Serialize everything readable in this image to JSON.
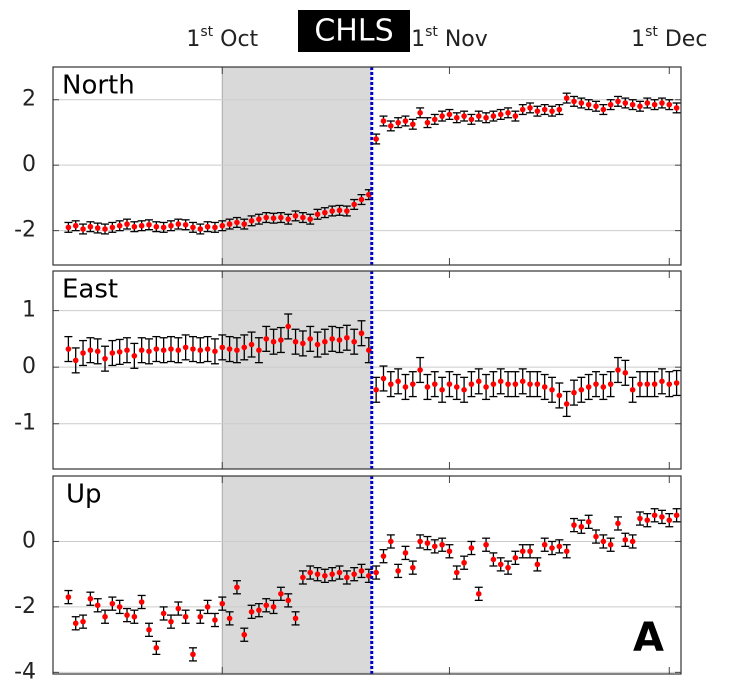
{
  "chart_data": {
    "type": "errorbar",
    "title": "CHLS",
    "annotation": "A",
    "x": [
      -21,
      -20,
      -19,
      -18,
      -17,
      -16,
      -15,
      -14,
      -13,
      -12,
      -11,
      -10,
      -9,
      -8,
      -7,
      -6,
      -5,
      -4,
      -3,
      -2,
      -1,
      0,
      1,
      2,
      3,
      4,
      5,
      6,
      7,
      8,
      9,
      10,
      11,
      12,
      13,
      14,
      15,
      16,
      17,
      18,
      19,
      20,
      21,
      22,
      23,
      24,
      25,
      26,
      27,
      28,
      29,
      30,
      31,
      32,
      33,
      34,
      35,
      36,
      37,
      38,
      39,
      40,
      41,
      42,
      43,
      44,
      45,
      46,
      47,
      48,
      49,
      50,
      51,
      52,
      53,
      54,
      55,
      56,
      57,
      58,
      59,
      60,
      61,
      62
    ],
    "xlim": [
      -23.1,
      62.6
    ],
    "xticks": [
      {
        "value": 0,
        "label": "1st Oct"
      },
      {
        "value": 31,
        "label": "1st Nov"
      },
      {
        "value": 61,
        "label": "1st Dec"
      }
    ],
    "highlight_span": [
      0,
      20.4
    ],
    "event_x": 20.4,
    "marker_color": "#ff0000",
    "errorbar_color": "#000000",
    "event_color": "#0000cc",
    "span_color": "#d9d9d9",
    "grid": true,
    "panels": [
      {
        "name": "North",
        "error": 0.15,
        "ylim": [
          -3.05,
          3
        ],
        "yticks": [
          -2,
          0,
          2
        ],
        "values": [
          -1.9,
          -1.85,
          -1.95,
          -1.88,
          -1.92,
          -1.95,
          -1.9,
          -1.85,
          -1.8,
          -1.88,
          -1.85,
          -1.82,
          -1.88,
          -1.9,
          -1.85,
          -1.8,
          -1.82,
          -1.9,
          -1.95,
          -1.88,
          -1.9,
          -1.85,
          -1.8,
          -1.75,
          -1.8,
          -1.7,
          -1.65,
          -1.6,
          -1.62,
          -1.6,
          -1.65,
          -1.55,
          -1.6,
          -1.65,
          -1.5,
          -1.45,
          -1.4,
          -1.38,
          -1.4,
          -1.2,
          -1.05,
          -0.9,
          0.8,
          1.35,
          1.2,
          1.3,
          1.35,
          1.25,
          1.6,
          1.3,
          1.4,
          1.5,
          1.55,
          1.45,
          1.5,
          1.4,
          1.5,
          1.45,
          1.5,
          1.55,
          1.6,
          1.5,
          1.7,
          1.75,
          1.65,
          1.7,
          1.65,
          1.7,
          2.05,
          1.95,
          1.9,
          1.85,
          1.8,
          1.7,
          1.85,
          1.95,
          1.9,
          1.85,
          1.8,
          1.9,
          1.85,
          1.9,
          1.85,
          1.75
        ]
      },
      {
        "name": "East",
        "error": 0.22,
        "ylim": [
          -1.8,
          1.7
        ],
        "yticks": [
          -1,
          0,
          1
        ],
        "values": [
          0.32,
          0.12,
          0.25,
          0.3,
          0.28,
          0.15,
          0.25,
          0.27,
          0.3,
          0.2,
          0.3,
          0.28,
          0.32,
          0.3,
          0.32,
          0.3,
          0.35,
          0.32,
          0.3,
          0.32,
          0.28,
          0.35,
          0.32,
          0.3,
          0.35,
          0.4,
          0.3,
          0.5,
          0.45,
          0.48,
          0.72,
          0.45,
          0.42,
          0.5,
          0.4,
          0.45,
          0.5,
          0.48,
          0.52,
          0.45,
          0.6,
          0.3,
          -0.4,
          -0.2,
          -0.3,
          -0.25,
          -0.35,
          -0.3,
          -0.05,
          -0.35,
          -0.3,
          -0.4,
          -0.3,
          -0.35,
          -0.4,
          -0.3,
          -0.25,
          -0.35,
          -0.3,
          -0.25,
          -0.3,
          -0.3,
          -0.25,
          -0.3,
          -0.3,
          -0.35,
          -0.4,
          -0.5,
          -0.65,
          -0.45,
          -0.4,
          -0.35,
          -0.3,
          -0.35,
          -0.3,
          -0.05,
          -0.1,
          -0.4,
          -0.3,
          -0.3,
          -0.3,
          -0.25,
          -0.3,
          -0.28
        ]
      },
      {
        "name": "Up",
        "error": 0.2,
        "ylim": [
          -4.05,
          2
        ],
        "yticks": [
          -4,
          -2,
          0
        ],
        "values": [
          -1.7,
          -2.5,
          -2.45,
          -1.75,
          -1.95,
          -2.3,
          -1.9,
          -2.0,
          -2.25,
          -2.3,
          -1.85,
          -2.7,
          -3.25,
          -2.2,
          -2.45,
          -2.05,
          -2.3,
          -3.45,
          -2.3,
          -2.0,
          -2.4,
          -1.9,
          -2.35,
          -1.4,
          -2.85,
          -2.15,
          -2.1,
          -1.95,
          -2.0,
          -1.6,
          -1.8,
          -2.35,
          -1.1,
          -0.95,
          -1.0,
          -1.05,
          -1.0,
          -0.95,
          -1.1,
          -1.0,
          -0.9,
          -1.05,
          -0.95,
          -0.45,
          0.0,
          -0.9,
          -0.35,
          -0.8,
          0.0,
          -0.05,
          -0.15,
          -0.1,
          -0.3,
          -0.95,
          -0.65,
          -0.2,
          -1.6,
          -0.1,
          -0.55,
          -0.7,
          -0.8,
          -0.5,
          -0.3,
          -0.3,
          -0.7,
          -0.1,
          -0.2,
          -0.15,
          -0.3,
          0.5,
          0.45,
          0.6,
          0.15,
          0.0,
          -0.1,
          0.55,
          0.05,
          0.0,
          0.7,
          0.65,
          0.8,
          0.75,
          0.65,
          0.8
        ]
      }
    ]
  }
}
